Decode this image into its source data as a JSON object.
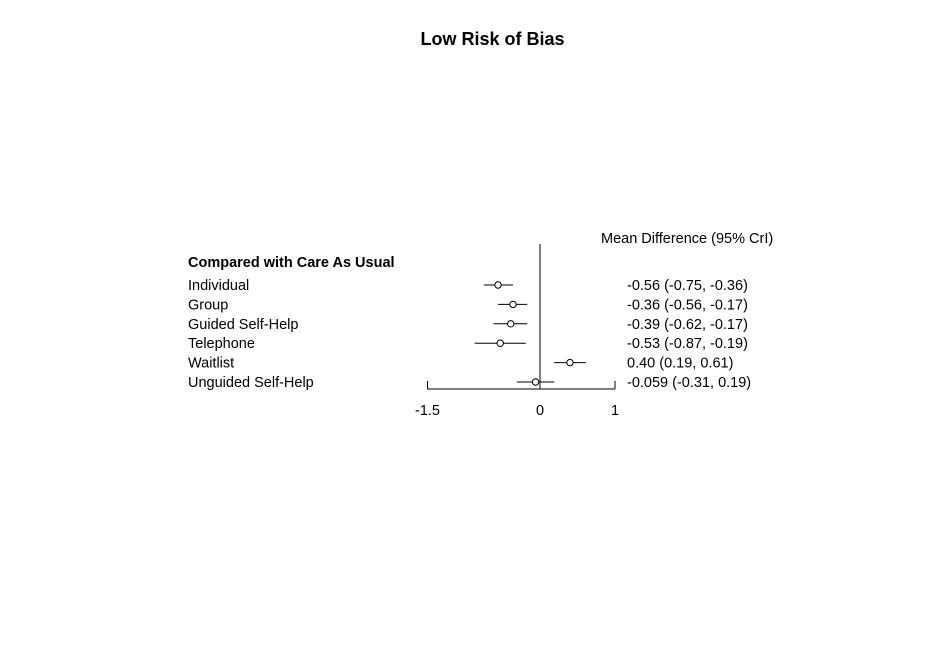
{
  "chart_data": {
    "type": "forest",
    "title": "Low Risk of Bias",
    "estimate_header": "Mean Difference (95% CrI)",
    "group_heading": "Compared with Care As Usual",
    "rows": [
      {
        "label": "Individual",
        "estimate": -0.56,
        "lower": -0.75,
        "upper": -0.36,
        "text": "-0.56 (-0.75, -0.36)"
      },
      {
        "label": "Group",
        "estimate": -0.36,
        "lower": -0.56,
        "upper": -0.17,
        "text": "-0.36 (-0.56, -0.17)"
      },
      {
        "label": "Guided Self-Help",
        "estimate": -0.39,
        "lower": -0.62,
        "upper": -0.17,
        "text": "-0.39 (-0.62, -0.17)"
      },
      {
        "label": "Telephone",
        "estimate": -0.53,
        "lower": -0.87,
        "upper": -0.19,
        "text": "-0.53 (-0.87, -0.19)"
      },
      {
        "label": "Waitlist",
        "estimate": 0.4,
        "lower": 0.19,
        "upper": 0.61,
        "text": "0.40 (0.19, 0.61)"
      },
      {
        "label": "Unguided Self-Help",
        "estimate": -0.059,
        "lower": -0.31,
        "upper": 0.19,
        "text": "-0.059 (-0.31, 0.19)"
      }
    ],
    "x_ticks": [
      -1.5,
      0,
      1
    ],
    "x_tick_labels": [
      "-1.5",
      "0",
      "1"
    ],
    "xlim": [
      -1.5,
      1
    ],
    "reference_line": 0
  }
}
